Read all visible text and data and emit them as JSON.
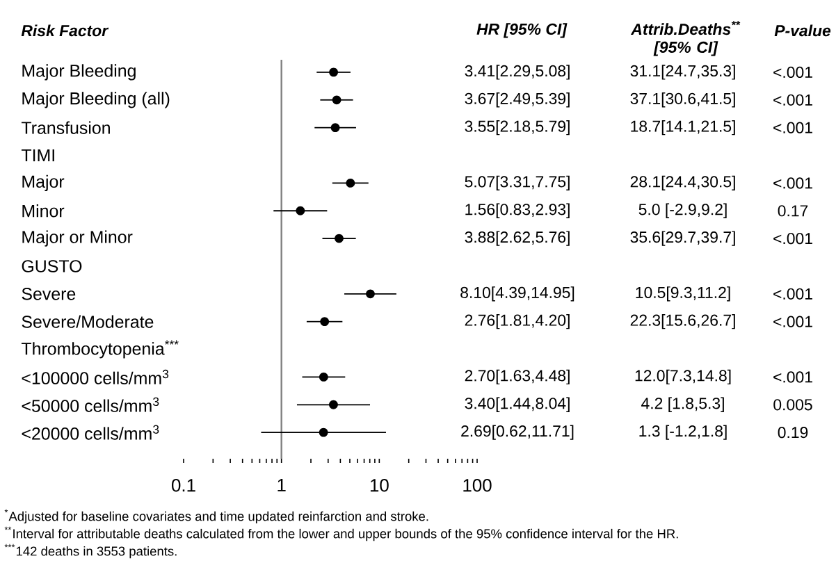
{
  "chart_data": {
    "type": "scatter",
    "orientation": "horizontal",
    "log": "x",
    "marker": "circle",
    "ylabel": "Risk Factor",
    "categories": [
      "Major Bleeding",
      "Major Bleeding (all)",
      "Transfusion",
      "TIMI",
      "Major",
      "Minor",
      "Major or Minor",
      "GUSTO",
      "Severe",
      "Severe/Moderate",
      "Thrombocytopenia$^{***}$",
      "<100000 cells/mm$^{3}$",
      "<50000 cells/mm$^{3}$",
      "<20000 cells/mm$^{3}$"
    ],
    "series": [
      {
        "color": "#000000",
        "values": [
          3.41,
          3.67,
          3.55,
          null,
          5.07,
          1.56,
          3.88,
          null,
          8.1,
          2.76,
          null,
          2.7,
          3.4,
          2.69
        ],
        "errors": [
          [
            2.29,
            5.08
          ],
          [
            2.49,
            5.39
          ],
          [
            2.18,
            5.79
          ],
          null,
          [
            3.31,
            7.75
          ],
          [
            0.83,
            2.93
          ],
          [
            2.62,
            5.76
          ],
          null,
          [
            4.39,
            14.95
          ],
          [
            1.81,
            4.2
          ],
          null,
          [
            1.63,
            4.48
          ],
          [
            1.44,
            8.04
          ],
          [
            0.62,
            11.71
          ]
        ],
        "value_labels": [
          "3.41[2.29,5.08]",
          "3.67[2.49,5.39]",
          "3.55[2.18,5.79]",
          null,
          "5.07[3.31,7.75]",
          "1.56[0.83,2.93]",
          "3.88[2.62,5.76]",
          null,
          "8.10[4.39,14.95]",
          "2.76[1.81,4.20]",
          null,
          "2.70[1.63,4.48]",
          "3.40[1.44,8.04]",
          "2.69[0.62,11.71]"
        ]
      }
    ],
    "xlim": [
      0.1,
      100
    ],
    "xticks": [
      0.1,
      {
        "value": 0.2,
        "label": null
      },
      {
        "value": 0.3,
        "label": null
      },
      {
        "value": 0.4,
        "label": null
      },
      {
        "value": 0.5,
        "label": null
      },
      {
        "value": 0.6,
        "label": null
      },
      {
        "value": 0.7,
        "label": null
      },
      {
        "value": 0.8,
        "label": null
      },
      {
        "value": 0.9,
        "label": null
      },
      1,
      {
        "value": 2,
        "label": null
      },
      {
        "value": 3,
        "label": null
      },
      {
        "value": 4,
        "label": null
      },
      {
        "value": 5,
        "label": null
      },
      {
        "value": 6,
        "label": null
      },
      {
        "value": 7,
        "label": null
      },
      {
        "value": 8,
        "label": null
      },
      {
        "value": 9,
        "label": null
      },
      10,
      {
        "value": 20,
        "label": null
      },
      {
        "value": 30,
        "label": null
      },
      {
        "value": 40,
        "label": null
      },
      {
        "value": 50,
        "label": null
      },
      {
        "value": 60,
        "label": null
      },
      {
        "value": 70,
        "label": null
      },
      {
        "value": 80,
        "label": null
      },
      {
        "value": 90,
        "label": null
      },
      100
    ],
    "ref_lines": [
      {
        "axis": "x",
        "value": 1,
        "color": "#808080"
      }
    ],
    "annotations": [
      "HR [95% CI]",
      "Attrib.Deaths$^{**}$ [95% CI]",
      "P-value",
      "31.1[24.7,35.3]",
      "<.001",
      "37.1[30.6,41.5]",
      "<.001",
      "18.7[14.1,21.5]",
      "<.001",
      "28.1[24.4,30.5]",
      "<.001",
      "5.0 [-2.9,9.2]",
      "0.17",
      "35.6[29.7,39.7]",
      "<.001",
      "10.5[9.3,11.2]",
      "<.001",
      "22.3[15.6,26.7]",
      "<.001",
      "12.0[7.3,14.8]",
      "<.001",
      "4.2 [1.8,5.3]",
      "0.005",
      "1.3 [-1.2,1.8]",
      "0.19",
      "$^{*}$Adjusted for baseline covariates and time updated reinfarction and stroke.",
      "$^{**}$Interval for attributable deaths calculated from the lower and upper bounds of the 95% confidence interval for the HR.",
      "$^{***}$142 deaths in 3553 patients."
    ]
  }
}
